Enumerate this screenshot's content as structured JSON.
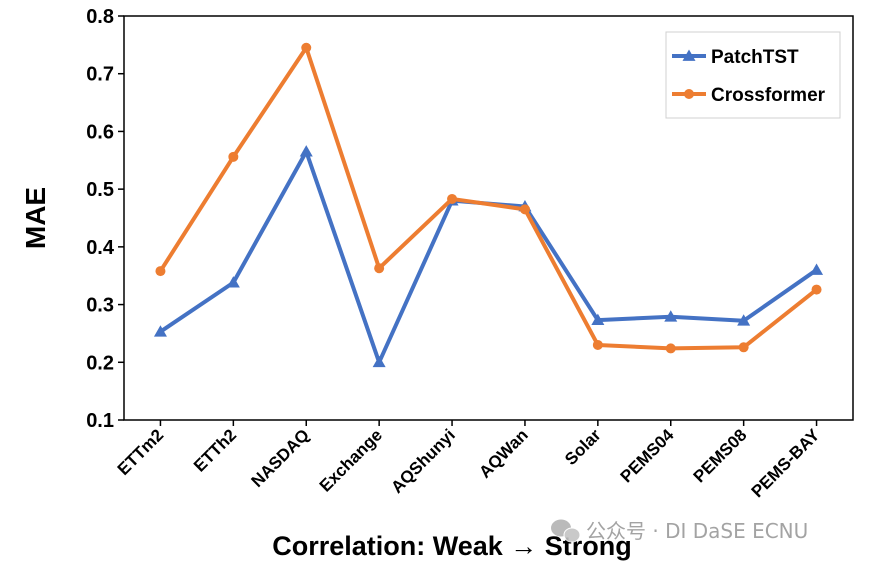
{
  "chart_data": {
    "type": "line",
    "categories": [
      "ETTm2",
      "ETTh2",
      "NASDAQ",
      "Exchange",
      "AQShunyi",
      "AQWan",
      "Solar",
      "PEMS04",
      "PEMS08",
      "PEMS-BAY"
    ],
    "series": [
      {
        "name": "PatchTST",
        "color": "#4472C4",
        "marker": "triangle",
        "values": [
          0.253,
          0.338,
          0.565,
          0.2,
          0.48,
          0.47,
          0.273,
          0.279,
          0.272,
          0.36
        ]
      },
      {
        "name": "Crossformer",
        "color": "#ED7D31",
        "marker": "circle",
        "values": [
          0.358,
          0.556,
          0.745,
          0.363,
          0.483,
          0.465,
          0.23,
          0.224,
          0.226,
          0.326
        ]
      }
    ],
    "title": "",
    "xlabel": "Correlation:  Weak → Strong",
    "ylabel": "MAE",
    "ylim": [
      0.1,
      0.8
    ],
    "yticks": [
      "0.1",
      "0.2",
      "0.3",
      "0.4",
      "0.5",
      "0.6",
      "0.7",
      "0.8"
    ],
    "grid": false,
    "legend_position": "top-right"
  },
  "watermark": {
    "icon": "wechat-icon",
    "text": "公众号 · DI DaSE ECNU"
  }
}
